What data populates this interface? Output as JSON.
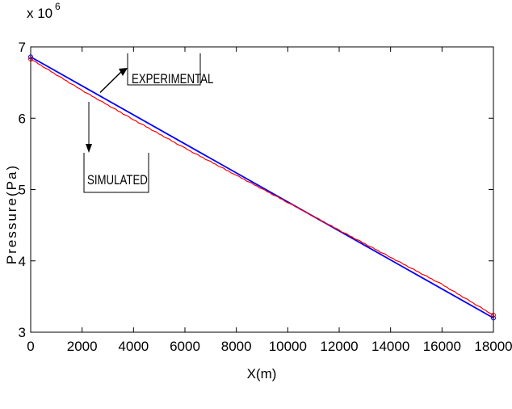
{
  "chart_data": {
    "type": "line",
    "xlabel": "X(m)",
    "ylabel": "Pressure(Pa)",
    "y_multiplier": "x 10",
    "y_exponent": "6",
    "xlim": [
      0,
      18000
    ],
    "ylim": [
      3,
      7
    ],
    "x_ticks": [
      0,
      2000,
      4000,
      6000,
      8000,
      10000,
      12000,
      14000,
      16000,
      18000
    ],
    "y_ticks": [
      3,
      4,
      5,
      6,
      7
    ],
    "x_tick_labels": [
      "0",
      "2000",
      "4000",
      "6000",
      "8000",
      "10000",
      "12000",
      "14000",
      "16000",
      "18000"
    ],
    "y_tick_labels": [
      "3",
      "4",
      "5",
      "6",
      "7"
    ],
    "grid": false,
    "series": [
      {
        "color": "#0000ff",
        "x": [
          0,
          18000
        ],
        "y": [
          6.86,
          3.2
        ]
      },
      {
        "color": "#ff0000",
        "x": [
          0,
          2000,
          4000,
          6000,
          8000,
          10000,
          12000,
          14000,
          16000,
          18000
        ],
        "y": [
          6.83,
          6.39,
          5.98,
          5.58,
          5.2,
          4.82,
          4.43,
          4.05,
          3.67,
          3.24
        ]
      }
    ],
    "annotations": [
      {
        "label": "EXPERIMENTAL",
        "points_to": {
          "x": 2700,
          "y": 6.36
        }
      },
      {
        "label": "SIMULATED",
        "points_to": {
          "x": 2300,
          "y": 6.6
        }
      }
    ]
  }
}
